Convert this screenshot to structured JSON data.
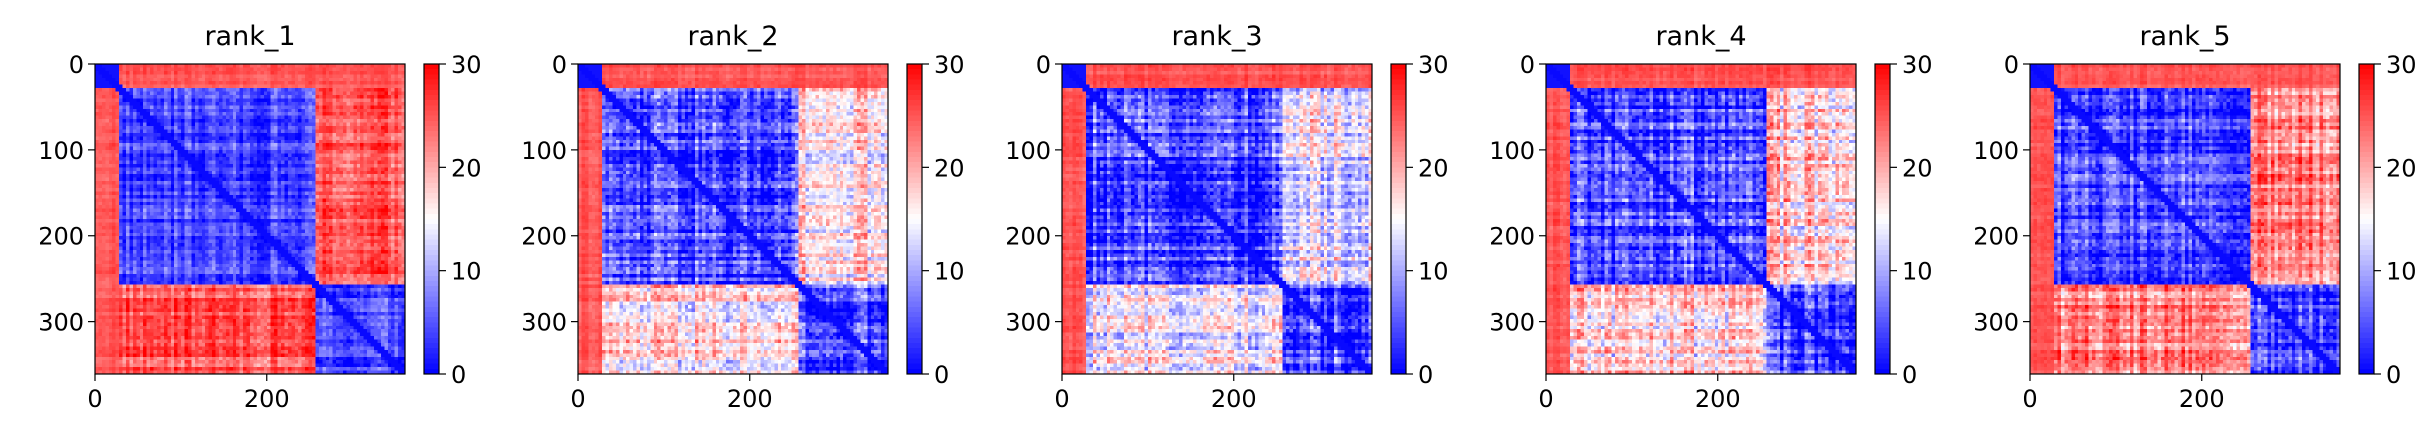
{
  "chart_data": [
    {
      "type": "heatmap",
      "title": "rank_1",
      "matrix_size": 361,
      "x_ticks": [
        0,
        200
      ],
      "y_ticks": [
        0,
        100,
        200,
        300
      ],
      "colorbar": {
        "colormap": "bwr",
        "vmin": 0,
        "vmax": 30,
        "ticks": [
          0,
          10,
          20,
          30
        ]
      },
      "segment_boundaries": [
        0,
        28,
        255,
        361
      ],
      "block_values": [
        [
          1,
          25,
          25
        ],
        [
          25,
          4,
          25
        ],
        [
          25,
          25,
          4
        ]
      ],
      "speckle_amplitude": 5
    },
    {
      "type": "heatmap",
      "title": "rank_2",
      "matrix_size": 361,
      "x_ticks": [
        0,
        200
      ],
      "y_ticks": [
        0,
        100,
        200,
        300
      ],
      "colorbar": {
        "colormap": "bwr",
        "vmin": 0,
        "vmax": 30,
        "ticks": [
          0,
          10,
          20,
          30
        ]
      },
      "segment_boundaries": [
        0,
        28,
        255,
        361
      ],
      "block_values": [
        [
          1,
          25,
          25
        ],
        [
          25,
          4,
          16
        ],
        [
          25,
          16,
          4
        ]
      ],
      "speckle_amplitude": 8
    },
    {
      "type": "heatmap",
      "title": "rank_3",
      "matrix_size": 361,
      "x_ticks": [
        0,
        200
      ],
      "y_ticks": [
        0,
        100,
        200,
        300
      ],
      "colorbar": {
        "colormap": "bwr",
        "vmin": 0,
        "vmax": 30,
        "ticks": [
          0,
          10,
          20,
          30
        ]
      },
      "segment_boundaries": [
        0,
        28,
        255,
        361
      ],
      "block_values": [
        [
          1,
          25,
          25
        ],
        [
          25,
          4,
          14
        ],
        [
          25,
          14,
          4
        ]
      ],
      "speckle_amplitude": 8
    },
    {
      "type": "heatmap",
      "title": "rank_4",
      "matrix_size": 361,
      "x_ticks": [
        0,
        200
      ],
      "y_ticks": [
        0,
        100,
        200,
        300
      ],
      "colorbar": {
        "colormap": "bwr",
        "vmin": 0,
        "vmax": 30,
        "ticks": [
          0,
          10,
          20,
          30
        ]
      },
      "segment_boundaries": [
        0,
        28,
        255,
        361
      ],
      "block_values": [
        [
          1,
          25,
          25
        ],
        [
          25,
          4,
          17
        ],
        [
          25,
          17,
          4
        ]
      ],
      "speckle_amplitude": 8
    },
    {
      "type": "heatmap",
      "title": "rank_5",
      "matrix_size": 361,
      "x_ticks": [
        0,
        200
      ],
      "y_ticks": [
        0,
        100,
        200,
        300
      ],
      "colorbar": {
        "colormap": "bwr",
        "vmin": 0,
        "vmax": 30,
        "ticks": [
          0,
          10,
          20,
          30
        ]
      },
      "segment_boundaries": [
        0,
        28,
        255,
        361
      ],
      "block_values": [
        [
          1,
          25,
          25
        ],
        [
          25,
          4,
          22
        ],
        [
          25,
          22,
          4
        ]
      ],
      "speckle_amplitude": 7
    }
  ]
}
